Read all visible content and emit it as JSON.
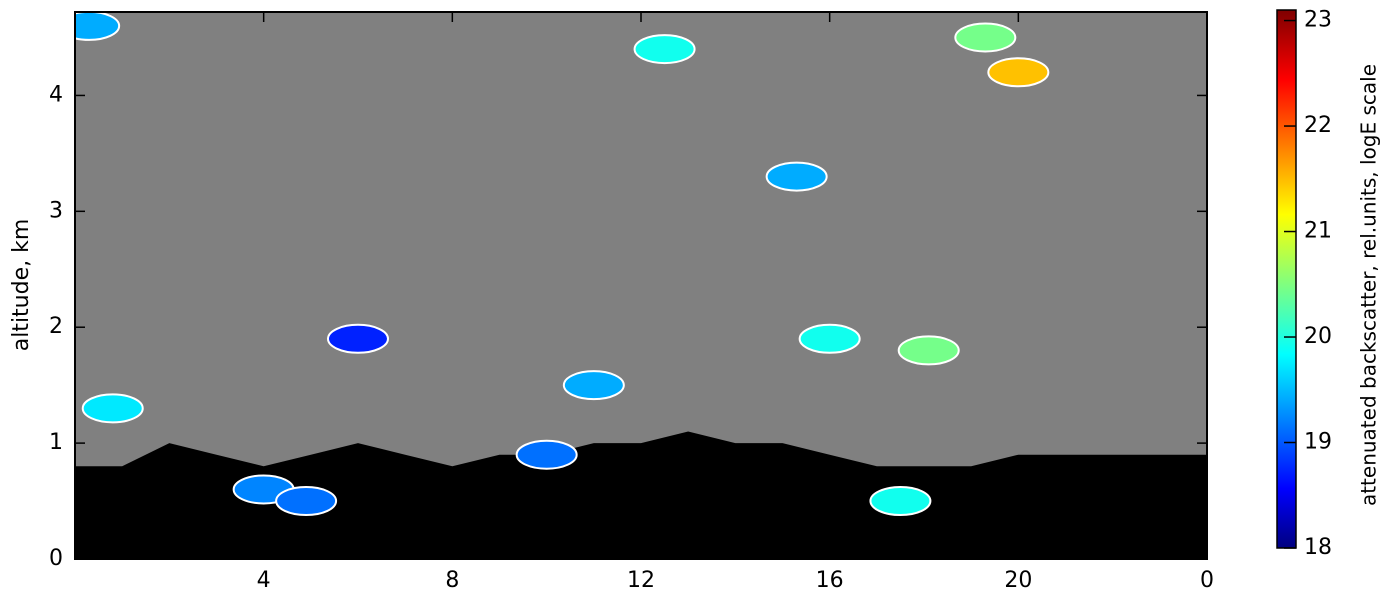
{
  "chart_data": {
    "type": "heatmap",
    "y_label": "altitude, km",
    "colorbar_label": "attenuated backscatter, rel.units, logE scale",
    "colormap": "jet",
    "background_color": "#808080",
    "xlim": [
      0,
      24
    ],
    "xticks": [
      4,
      8,
      12,
      16,
      20,
      {
        "value": 24,
        "label": "0"
      }
    ],
    "ylim": [
      0,
      4.72
    ],
    "yticks": [
      0,
      1,
      2,
      3,
      4
    ],
    "clim": [
      18,
      23.1
    ],
    "cticks": [
      18,
      19,
      20,
      21,
      22,
      23
    ],
    "boundary_layer": {
      "color": "#000000",
      "x": [
        0,
        1,
        2,
        3,
        4,
        5,
        6,
        7,
        8,
        9,
        10,
        11,
        12,
        13,
        14,
        15,
        16,
        17,
        18,
        19,
        20,
        21,
        22,
        23,
        24
      ],
      "values": [
        0.8,
        0.8,
        1.0,
        0.9,
        0.8,
        0.9,
        1.0,
        0.9,
        0.8,
        0.9,
        0.9,
        1.0,
        1.0,
        1.1,
        1.0,
        1.0,
        0.9,
        0.8,
        0.8,
        0.8,
        0.9,
        0.9,
        0.9,
        0.9,
        0.9
      ]
    },
    "clouds": {
      "x": [
        0.8,
        4.0,
        0.3,
        12.5,
        20.0,
        19.3,
        15.3,
        16.0,
        11.0,
        10.0,
        18.1,
        17.5,
        6.0,
        4.9
      ],
      "y": [
        1.3,
        0.6,
        4.6,
        4.4,
        4.2,
        4.5,
        3.3,
        1.9,
        1.5,
        0.9,
        1.8,
        0.5,
        1.9,
        0.5
      ],
      "values": [
        19.8,
        19.3,
        19.5,
        20.0,
        21.5,
        20.5,
        19.5,
        20.0,
        19.5,
        19.2,
        20.5,
        20.0,
        18.8,
        19.2
      ]
    }
  }
}
